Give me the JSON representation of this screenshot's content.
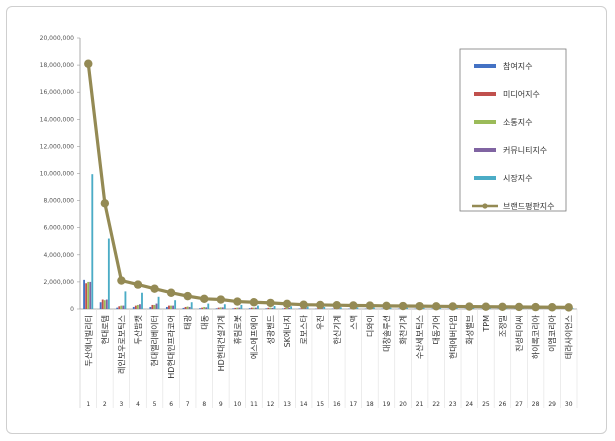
{
  "chart_data": {
    "type": "bar",
    "ylim": [
      0,
      20000000
    ],
    "y_ticks": [
      "0",
      "2,000,000",
      "4,000,000",
      "6,000,000",
      "8,000,000",
      "10,000,000",
      "12,000,000",
      "14,000,000",
      "16,000,000",
      "18,000,000",
      "20,000,000"
    ],
    "grid": false,
    "legend_position": "top-right",
    "ranks": [
      "1",
      "2",
      "3",
      "4",
      "5",
      "6",
      "7",
      "8",
      "9",
      "10",
      "11",
      "12",
      "13",
      "14",
      "15",
      "16",
      "17",
      "18",
      "19",
      "20",
      "21",
      "22",
      "23",
      "24",
      "25",
      "26",
      "27",
      "28",
      "29",
      "30"
    ],
    "categories": [
      "두산에너빌리티",
      "현대로템",
      "레인보우로보틱스",
      "두산밥캣",
      "현대엘리베이터",
      "HD현대인프라코어",
      "태광",
      "대동",
      "HD현대건설기계",
      "휴림로봇",
      "에스에프에이",
      "성광벤드",
      "SK에너지",
      "로보스타",
      "우진",
      "한신기계",
      "스맥",
      "디와이",
      "대창솔루션",
      "화천기계",
      "수산세보틱스",
      "대동기어",
      "현대에버다임",
      "화성밸브",
      "TPM",
      "조정밀",
      "진성티이씨",
      "하이록코리아",
      "이엠코리아",
      "테라사이언스"
    ],
    "series": [
      {
        "name": "참여지수",
        "color": "#4472c4",
        "chart_type": "bar",
        "values": [
          2150000,
          500000,
          100000,
          150000,
          150000,
          150000,
          80000,
          60000,
          50000,
          50000,
          60000,
          50000,
          40000,
          40000,
          30000,
          30000,
          30000,
          30000,
          30000,
          30000,
          30000,
          30000,
          30000,
          20000,
          20000,
          20000,
          20000,
          20000,
          20000,
          20000
        ]
      },
      {
        "name": "미디어지수",
        "color": "#c0504d",
        "chart_type": "bar",
        "values": [
          1900000,
          700000,
          200000,
          250000,
          300000,
          250000,
          150000,
          100000,
          100000,
          80000,
          100000,
          90000,
          70000,
          60000,
          60000,
          50000,
          50000,
          50000,
          40000,
          40000,
          40000,
          40000,
          30000,
          30000,
          30000,
          30000,
          30000,
          20000,
          20000,
          20000
        ]
      },
      {
        "name": "소통지수",
        "color": "#9bbb59",
        "chart_type": "bar",
        "values": [
          2000000,
          650000,
          250000,
          300000,
          300000,
          250000,
          180000,
          150000,
          120000,
          100000,
          100000,
          100000,
          80000,
          80000,
          70000,
          60000,
          60000,
          50000,
          50000,
          50000,
          50000,
          40000,
          40000,
          40000,
          30000,
          30000,
          30000,
          30000,
          30000,
          20000
        ]
      },
      {
        "name": "커뮤니티지수",
        "color": "#8064a2",
        "chart_type": "bar",
        "values": [
          2000000,
          700000,
          250000,
          350000,
          400000,
          250000,
          150000,
          120000,
          120000,
          100000,
          100000,
          80000,
          80000,
          70000,
          60000,
          60000,
          50000,
          50000,
          50000,
          40000,
          40000,
          40000,
          40000,
          30000,
          30000,
          30000,
          30000,
          30000,
          20000,
          20000
        ]
      },
      {
        "name": "시장지수",
        "color": "#4bacc6",
        "chart_type": "bar",
        "values": [
          9950000,
          5200000,
          1300000,
          1200000,
          900000,
          650000,
          500000,
          400000,
          350000,
          300000,
          250000,
          220000,
          200000,
          180000,
          150000,
          130000,
          120000,
          110000,
          100000,
          100000,
          90000,
          90000,
          80000,
          80000,
          70000,
          70000,
          60000,
          60000,
          60000,
          50000
        ]
      },
      {
        "name": "브랜드평판지수",
        "color": "#948a54",
        "chart_type": "line",
        "values": [
          18100000,
          7800000,
          2100000,
          1800000,
          1500000,
          1200000,
          950000,
          750000,
          700000,
          550000,
          500000,
          450000,
          380000,
          320000,
          300000,
          280000,
          260000,
          250000,
          230000,
          220000,
          210000,
          200000,
          190000,
          180000,
          170000,
          160000,
          150000,
          140000,
          130000,
          120000
        ]
      }
    ]
  }
}
